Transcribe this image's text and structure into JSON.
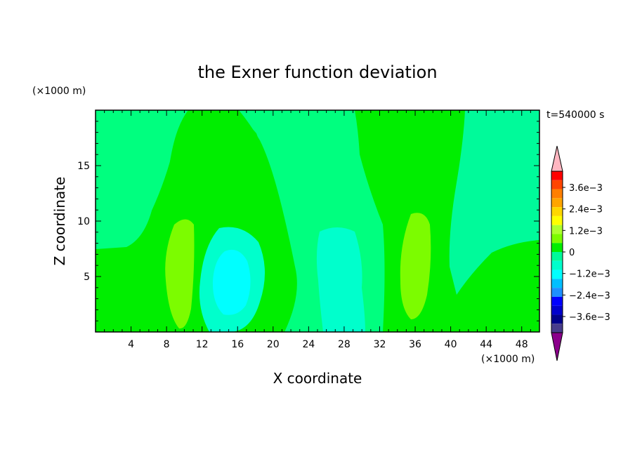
{
  "chart_data": {
    "type": "heatmap",
    "title": "the Exner function deviation",
    "xlabel": "X coordinate",
    "ylabel": "Z coordinate",
    "x_unit": "(×1000 m)",
    "y_unit": "(×1000 m)",
    "time_label": "t=540000 s",
    "xlim": [
      0,
      50
    ],
    "ylim": [
      0,
      20
    ],
    "x_ticks": [
      4,
      8,
      12,
      16,
      20,
      24,
      28,
      32,
      36,
      40,
      44,
      48
    ],
    "y_ticks": [
      5,
      10,
      15
    ],
    "x_tick_labels": [
      "4",
      "8",
      "12",
      "16",
      "20",
      "24",
      "28",
      "32",
      "36",
      "40",
      "44",
      "48"
    ],
    "y_tick_labels": [
      "5",
      "10",
      "15"
    ],
    "background_level_color": "#00ee00",
    "regions": [
      {
        "name": "upper-left-positive",
        "color": "#00ff7f"
      },
      {
        "name": "dome-plateau",
        "color": "#00ee00"
      },
      {
        "name": "right-mid-band",
        "color": "#00fa9a"
      },
      {
        "name": "left-column-high",
        "color": "#7cfc00"
      },
      {
        "name": "center-right-column-high",
        "color": "#7cfc00"
      },
      {
        "name": "cyan-core",
        "color": "#00ffff"
      }
    ],
    "colorbar": {
      "labels": [
        "3.6e−3",
        "2.4e−3",
        "1.2e−3",
        "0",
        "−1.2e−3",
        "−2.4e−3",
        "−3.6e−3"
      ],
      "label_values": [
        0.0036,
        0.0024,
        0.0012,
        0,
        -0.0012,
        -0.0024,
        -0.0036
      ],
      "colors": [
        "#ffb6c1",
        "#ff0000",
        "#ff4500",
        "#ff7f00",
        "#ffa500",
        "#ffd700",
        "#ffff00",
        "#adff2f",
        "#7cfc00",
        "#00ee00",
        "#00fa9a",
        "#00ffcc",
        "#00ffff",
        "#00bfff",
        "#1e90ff",
        "#0000ff",
        "#0000cd",
        "#00008b",
        "#483d8b",
        "#8b008b"
      ]
    }
  }
}
